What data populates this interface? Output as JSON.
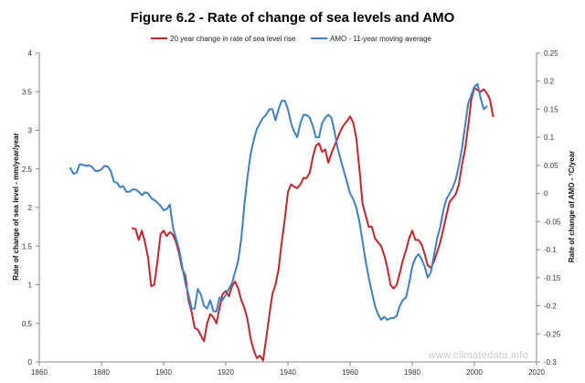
{
  "chart_data": {
    "type": "line",
    "title": "Figure 6.2 - Rate of change of sea levels and AMO",
    "ylabel": "Rate of change of sea level - mm/year/year",
    "y2label": "Rate of change of AMO - °C/year",
    "xlim": [
      1860,
      2020
    ],
    "ylim": [
      0,
      4
    ],
    "y2lim": [
      -0.3,
      0.25
    ],
    "x_ticks": [
      "1860",
      "1880",
      "1900",
      "1920",
      "1940",
      "1960",
      "1980",
      "2000",
      "2020"
    ],
    "y_ticks": [
      "0",
      "0.5",
      "1",
      "1.5",
      "2",
      "2.5",
      "3",
      "3.5",
      "4"
    ],
    "y2_ticks": [
      "-0.3",
      "-0.25",
      "-0.2",
      "-0.15",
      "-0.1",
      "-0.05",
      "0",
      "0.05",
      "0.1",
      "0.15",
      "0.2",
      "0.25"
    ],
    "legend_position": "top",
    "grid": false,
    "watermark": "www.climatedata.info",
    "series": [
      {
        "name": "20 year change in rate of sea level rise",
        "color": "#c0272d",
        "axis": "left",
        "points": [
          [
            1890,
            1.73
          ],
          [
            1891,
            1.72
          ],
          [
            1892,
            1.58
          ],
          [
            1893,
            1.7
          ],
          [
            1894,
            1.55
          ],
          [
            1895,
            1.35
          ],
          [
            1896,
            0.98
          ],
          [
            1897,
            1.0
          ],
          [
            1898,
            1.3
          ],
          [
            1899,
            1.65
          ],
          [
            1900,
            1.7
          ],
          [
            1901,
            1.63
          ],
          [
            1902,
            1.68
          ],
          [
            1903,
            1.65
          ],
          [
            1904,
            1.55
          ],
          [
            1905,
            1.4
          ],
          [
            1906,
            1.2
          ],
          [
            1907,
            1.12
          ],
          [
            1908,
            0.8
          ],
          [
            1909,
            0.65
          ],
          [
            1910,
            0.44
          ],
          [
            1911,
            0.42
          ],
          [
            1912,
            0.34
          ],
          [
            1913,
            0.27
          ],
          [
            1914,
            0.5
          ],
          [
            1915,
            0.62
          ],
          [
            1916,
            0.58
          ],
          [
            1917,
            0.5
          ],
          [
            1918,
            0.7
          ],
          [
            1919,
            0.88
          ],
          [
            1920,
            0.92
          ],
          [
            1921,
            0.85
          ],
          [
            1922,
            0.98
          ],
          [
            1923,
            1.04
          ],
          [
            1924,
            0.95
          ],
          [
            1925,
            0.8
          ],
          [
            1926,
            0.7
          ],
          [
            1927,
            0.55
          ],
          [
            1928,
            0.3
          ],
          [
            1929,
            0.15
          ],
          [
            1930,
            0.05
          ],
          [
            1931,
            0.08
          ],
          [
            1932,
            0.02
          ],
          [
            1933,
            0.3
          ],
          [
            1934,
            0.6
          ],
          [
            1935,
            0.88
          ],
          [
            1936,
            1.0
          ],
          [
            1937,
            1.2
          ],
          [
            1938,
            1.55
          ],
          [
            1939,
            1.85
          ],
          [
            1940,
            2.2
          ],
          [
            1941,
            2.3
          ],
          [
            1942,
            2.27
          ],
          [
            1943,
            2.25
          ],
          [
            1944,
            2.3
          ],
          [
            1945,
            2.38
          ],
          [
            1946,
            2.38
          ],
          [
            1947,
            2.45
          ],
          [
            1948,
            2.65
          ],
          [
            1949,
            2.8
          ],
          [
            1950,
            2.83
          ],
          [
            1951,
            2.72
          ],
          [
            1952,
            2.75
          ],
          [
            1953,
            2.58
          ],
          [
            1954,
            2.7
          ],
          [
            1955,
            2.8
          ],
          [
            1956,
            2.9
          ],
          [
            1957,
            3.0
          ],
          [
            1958,
            3.07
          ],
          [
            1959,
            3.12
          ],
          [
            1960,
            3.18
          ],
          [
            1961,
            3.1
          ],
          [
            1962,
            2.9
          ],
          [
            1963,
            2.5
          ],
          [
            1964,
            2.05
          ],
          [
            1965,
            1.9
          ],
          [
            1966,
            1.75
          ],
          [
            1967,
            1.75
          ],
          [
            1968,
            1.6
          ],
          [
            1969,
            1.55
          ],
          [
            1970,
            1.5
          ],
          [
            1971,
            1.38
          ],
          [
            1972,
            1.22
          ],
          [
            1973,
            1.0
          ],
          [
            1974,
            0.95
          ],
          [
            1975,
            1.0
          ],
          [
            1976,
            1.15
          ],
          [
            1977,
            1.32
          ],
          [
            1978,
            1.45
          ],
          [
            1979,
            1.6
          ],
          [
            1980,
            1.7
          ],
          [
            1981,
            1.58
          ],
          [
            1982,
            1.58
          ],
          [
            1983,
            1.52
          ],
          [
            1984,
            1.4
          ],
          [
            1985,
            1.25
          ],
          [
            1986,
            1.22
          ],
          [
            1987,
            1.3
          ],
          [
            1988,
            1.42
          ],
          [
            1989,
            1.55
          ],
          [
            1990,
            1.72
          ],
          [
            1991,
            1.9
          ],
          [
            1992,
            2.07
          ],
          [
            1993,
            2.12
          ],
          [
            1994,
            2.17
          ],
          [
            1995,
            2.3
          ],
          [
            1996,
            2.55
          ],
          [
            1997,
            2.75
          ],
          [
            1998,
            3.05
          ],
          [
            1999,
            3.4
          ],
          [
            2000,
            3.55
          ],
          [
            2001,
            3.52
          ],
          [
            2002,
            3.5
          ],
          [
            2003,
            3.53
          ],
          [
            2004,
            3.48
          ],
          [
            2005,
            3.4
          ],
          [
            2006,
            3.18
          ]
        ]
      },
      {
        "name": "AMO - 11-year moving average",
        "color": "#3f7fc2",
        "axis": "right",
        "points": [
          [
            1870,
            0.045
          ],
          [
            1871,
            0.035
          ],
          [
            1872,
            0.037
          ],
          [
            1873,
            0.052
          ],
          [
            1874,
            0.051
          ],
          [
            1875,
            0.049
          ],
          [
            1876,
            0.05
          ],
          [
            1877,
            0.047
          ],
          [
            1878,
            0.04
          ],
          [
            1879,
            0.04
          ],
          [
            1880,
            0.043
          ],
          [
            1881,
            0.049
          ],
          [
            1882,
            0.048
          ],
          [
            1883,
            0.04
          ],
          [
            1884,
            0.021
          ],
          [
            1885,
            0.019
          ],
          [
            1886,
            0.011
          ],
          [
            1887,
            0.013
          ],
          [
            1888,
            0.003
          ],
          [
            1889,
            0.003
          ],
          [
            1890,
            0.007
          ],
          [
            1891,
            0.007
          ],
          [
            1892,
            0.003
          ],
          [
            1893,
            -0.003
          ],
          [
            1894,
            0.002
          ],
          [
            1895,
            0.0
          ],
          [
            1896,
            -0.008
          ],
          [
            1897,
            -0.012
          ],
          [
            1898,
            -0.016
          ],
          [
            1899,
            -0.022
          ],
          [
            1900,
            -0.03
          ],
          [
            1901,
            -0.028
          ],
          [
            1902,
            -0.02
          ],
          [
            1903,
            -0.06
          ],
          [
            1904,
            -0.08
          ],
          [
            1905,
            -0.1
          ],
          [
            1906,
            -0.13
          ],
          [
            1907,
            -0.16
          ],
          [
            1908,
            -0.18
          ],
          [
            1909,
            -0.205
          ],
          [
            1910,
            -0.205
          ],
          [
            1911,
            -0.17
          ],
          [
            1912,
            -0.18
          ],
          [
            1913,
            -0.2
          ],
          [
            1914,
            -0.205
          ],
          [
            1915,
            -0.19
          ],
          [
            1916,
            -0.21
          ],
          [
            1917,
            -0.21
          ],
          [
            1918,
            -0.185
          ],
          [
            1919,
            -0.19
          ],
          [
            1920,
            -0.18
          ],
          [
            1921,
            -0.17
          ],
          [
            1922,
            -0.16
          ],
          [
            1923,
            -0.14
          ],
          [
            1924,
            -0.12
          ],
          [
            1925,
            -0.08
          ],
          [
            1926,
            -0.02
          ],
          [
            1927,
            0.03
          ],
          [
            1928,
            0.07
          ],
          [
            1929,
            0.095
          ],
          [
            1930,
            0.115
          ],
          [
            1931,
            0.125
          ],
          [
            1932,
            0.135
          ],
          [
            1933,
            0.14
          ],
          [
            1934,
            0.15
          ],
          [
            1935,
            0.15
          ],
          [
            1936,
            0.13
          ],
          [
            1937,
            0.15
          ],
          [
            1938,
            0.165
          ],
          [
            1939,
            0.165
          ],
          [
            1940,
            0.15
          ],
          [
            1941,
            0.125
          ],
          [
            1942,
            0.11
          ],
          [
            1943,
            0.1
          ],
          [
            1944,
            0.125
          ],
          [
            1945,
            0.14
          ],
          [
            1946,
            0.14
          ],
          [
            1947,
            0.135
          ],
          [
            1948,
            0.12
          ],
          [
            1949,
            0.1
          ],
          [
            1950,
            0.1
          ],
          [
            1951,
            0.125
          ],
          [
            1952,
            0.135
          ],
          [
            1953,
            0.14
          ],
          [
            1954,
            0.135
          ],
          [
            1955,
            0.11
          ],
          [
            1956,
            0.08
          ],
          [
            1957,
            0.06
          ],
          [
            1958,
            0.04
          ],
          [
            1959,
            0.02
          ],
          [
            1960,
            0.0
          ],
          [
            1961,
            -0.01
          ],
          [
            1962,
            -0.025
          ],
          [
            1963,
            -0.05
          ],
          [
            1964,
            -0.085
          ],
          [
            1965,
            -0.12
          ],
          [
            1966,
            -0.15
          ],
          [
            1967,
            -0.175
          ],
          [
            1968,
            -0.2
          ],
          [
            1969,
            -0.215
          ],
          [
            1970,
            -0.225
          ],
          [
            1971,
            -0.22
          ],
          [
            1972,
            -0.225
          ],
          [
            1973,
            -0.222
          ],
          [
            1974,
            -0.222
          ],
          [
            1975,
            -0.218
          ],
          [
            1976,
            -0.2
          ],
          [
            1977,
            -0.19
          ],
          [
            1978,
            -0.185
          ],
          [
            1979,
            -0.16
          ],
          [
            1980,
            -0.13
          ],
          [
            1981,
            -0.115
          ],
          [
            1982,
            -0.108
          ],
          [
            1983,
            -0.117
          ],
          [
            1984,
            -0.13
          ],
          [
            1985,
            -0.15
          ],
          [
            1986,
            -0.14
          ],
          [
            1987,
            -0.11
          ],
          [
            1988,
            -0.08
          ],
          [
            1989,
            -0.06
          ],
          [
            1990,
            -0.03
          ],
          [
            1991,
            -0.01
          ],
          [
            1992,
            0.0
          ],
          [
            1993,
            0.01
          ],
          [
            1994,
            0.025
          ],
          [
            1995,
            0.05
          ],
          [
            1996,
            0.08
          ],
          [
            1997,
            0.12
          ],
          [
            1998,
            0.16
          ],
          [
            1999,
            0.175
          ],
          [
            2000,
            0.19
          ],
          [
            2001,
            0.195
          ],
          [
            2002,
            0.17
          ],
          [
            2003,
            0.15
          ],
          [
            2004,
            0.155
          ]
        ]
      }
    ]
  }
}
